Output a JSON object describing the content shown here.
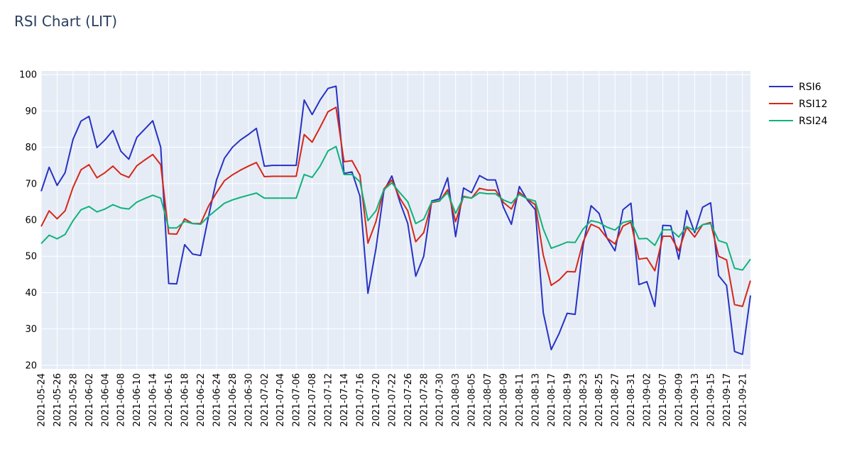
{
  "chart_data": {
    "type": "line",
    "title": "RSI Chart (LIT)",
    "xlabel": "",
    "ylabel": "",
    "ylim": [
      19,
      101
    ],
    "yticks": [
      20,
      30,
      40,
      50,
      60,
      70,
      80,
      90,
      100
    ],
    "grid": true,
    "legend_position": "top-right",
    "background_color": "#e5ecf6",
    "x": [
      "2021-05-24",
      "2021-05-25",
      "2021-05-26",
      "2021-05-27",
      "2021-05-28",
      "2021-06-01",
      "2021-06-02",
      "2021-06-03",
      "2021-06-04",
      "2021-06-07",
      "2021-06-08",
      "2021-06-09",
      "2021-06-10",
      "2021-06-11",
      "2021-06-14",
      "2021-06-15",
      "2021-06-16",
      "2021-06-17",
      "2021-06-18",
      "2021-06-21",
      "2021-06-22",
      "2021-06-23",
      "2021-06-24",
      "2021-06-25",
      "2021-06-28",
      "2021-06-29",
      "2021-06-30",
      "2021-07-01",
      "2021-07-02",
      "2021-07-03",
      "2021-07-04",
      "2021-07-05",
      "2021-07-06",
      "2021-07-07",
      "2021-07-08",
      "2021-07-09",
      "2021-07-12",
      "2021-07-13",
      "2021-07-14",
      "2021-07-15",
      "2021-07-16",
      "2021-07-19",
      "2021-07-20",
      "2021-07-21",
      "2021-07-22",
      "2021-07-23",
      "2021-07-26",
      "2021-07-27",
      "2021-07-28",
      "2021-07-29",
      "2021-07-30",
      "2021-08-02",
      "2021-08-03",
      "2021-08-04",
      "2021-08-05",
      "2021-08-06",
      "2021-08-07",
      "2021-08-08",
      "2021-08-09",
      "2021-08-10",
      "2021-08-11",
      "2021-08-12",
      "2021-08-13",
      "2021-08-16",
      "2021-08-17",
      "2021-08-18",
      "2021-08-19",
      "2021-08-20",
      "2021-08-23",
      "2021-08-24",
      "2021-08-25",
      "2021-08-26",
      "2021-08-27",
      "2021-08-30",
      "2021-08-31",
      "2021-09-01",
      "2021-09-02",
      "2021-09-03",
      "2021-09-07",
      "2021-09-08",
      "2021-09-09",
      "2021-09-10",
      "2021-09-13",
      "2021-09-14",
      "2021-09-15",
      "2021-09-16",
      "2021-09-17",
      "2021-09-20",
      "2021-09-21",
      "2021-09-22"
    ],
    "tick_labels": [
      "2021-05-24",
      "2021-05-26",
      "2021-05-28",
      "2021-06-02",
      "2021-06-04",
      "2021-06-08",
      "2021-06-10",
      "2021-06-14",
      "2021-06-16",
      "2021-06-18",
      "2021-06-22",
      "2021-06-24",
      "2021-06-28",
      "2021-06-30",
      "2021-07-02",
      "2021-07-04",
      "2021-07-06",
      "2021-07-08",
      "2021-07-12",
      "2021-07-14",
      "2021-07-16",
      "2021-07-20",
      "2021-07-22",
      "2021-07-26",
      "2021-07-28",
      "2021-07-30",
      "2021-08-03",
      "2021-08-05",
      "2021-08-07",
      "2021-08-09",
      "2021-08-11",
      "2021-08-13",
      "2021-08-17",
      "2021-08-19",
      "2021-08-23",
      "2021-08-25",
      "2021-08-27",
      "2021-08-31",
      "2021-09-02",
      "2021-09-07",
      "2021-09-09",
      "2021-09-13",
      "2021-09-15",
      "2021-09-17",
      "2021-09-21"
    ],
    "series": [
      {
        "name": "RSI6",
        "color": "#2832c2",
        "values": [
          67.9,
          74.5,
          69.5,
          73.0,
          82.2,
          87.2,
          88.5,
          79.9,
          82.0,
          84.6,
          78.9,
          76.7,
          82.7,
          85.0,
          87.3,
          80.0,
          42.5,
          42.4,
          53.2,
          50.6,
          50.2,
          61.0,
          71.0,
          77.0,
          80.0,
          82.0,
          83.5,
          85.2,
          74.8,
          75.0,
          75.0,
          75.0,
          75.0,
          93.0,
          89.0,
          93.0,
          96.2,
          96.8,
          72.8,
          73.2,
          66.5,
          39.8,
          52.0,
          68.0,
          72.1,
          65.0,
          59.0,
          44.5,
          50.0,
          65.2,
          65.8,
          71.6,
          55.4,
          68.8,
          67.5,
          72.2,
          71.0,
          71.0,
          63.5,
          58.8,
          69.2,
          65.5,
          62.8,
          34.5,
          24.3,
          28.8,
          34.3,
          34.0,
          53.0,
          63.9,
          61.8,
          55.0,
          51.5,
          62.8,
          64.6,
          42.2,
          43.0,
          36.2,
          58.5,
          58.4,
          49.2,
          62.6,
          56.5,
          63.5,
          64.7,
          44.7,
          42.0,
          23.8,
          23.0,
          39.2
        ]
      },
      {
        "name": "RSI12",
        "color": "#d62718",
        "values": [
          58.2,
          62.5,
          60.3,
          62.5,
          69.0,
          73.8,
          75.2,
          71.6,
          73.0,
          74.8,
          72.6,
          71.7,
          74.9,
          76.5,
          78.0,
          75.2,
          56.2,
          56.1,
          60.3,
          59.0,
          59.0,
          63.8,
          67.5,
          70.8,
          72.4,
          73.7,
          74.8,
          75.8,
          71.9,
          72.0,
          72.0,
          72.0,
          72.0,
          83.5,
          81.4,
          85.5,
          89.8,
          91.0,
          76.0,
          76.3,
          72.3,
          53.6,
          59.5,
          68.5,
          71.0,
          66.0,
          62.5,
          54.0,
          56.5,
          64.8,
          65.2,
          68.3,
          59.5,
          66.5,
          66.0,
          68.7,
          68.2,
          68.2,
          64.8,
          63.0,
          67.6,
          65.7,
          64.2,
          50.3,
          42.0,
          43.5,
          45.8,
          45.7,
          54.0,
          58.8,
          57.8,
          55.0,
          53.4,
          58.3,
          59.4,
          49.2,
          49.5,
          46.0,
          55.5,
          55.5,
          51.5,
          58.0,
          55.3,
          58.7,
          59.3,
          50.0,
          49.0,
          36.7,
          36.2,
          43.3
        ]
      },
      {
        "name": "RSI24",
        "color": "#10b27a",
        "values": [
          53.5,
          55.8,
          54.8,
          56.0,
          59.8,
          62.8,
          63.7,
          62.2,
          63.0,
          64.2,
          63.3,
          63.0,
          64.9,
          65.9,
          66.8,
          66.0,
          57.8,
          57.8,
          59.6,
          59.0,
          58.8,
          61.0,
          62.8,
          64.6,
          65.5,
          66.2,
          66.8,
          67.4,
          66.0,
          66.0,
          66.0,
          66.0,
          66.0,
          72.5,
          71.7,
          74.8,
          79.0,
          80.2,
          72.5,
          72.5,
          70.5,
          59.8,
          62.5,
          68.3,
          70.2,
          67.5,
          65.0,
          59.0,
          60.2,
          65.0,
          65.3,
          67.5,
          61.8,
          66.3,
          66.0,
          67.5,
          67.2,
          67.2,
          65.5,
          64.6,
          67.0,
          65.8,
          65.2,
          57.5,
          52.2,
          53.0,
          53.9,
          53.8,
          57.5,
          59.8,
          59.3,
          58.0,
          57.2,
          59.3,
          59.8,
          54.8,
          54.9,
          53.0,
          57.3,
          57.3,
          55.3,
          58.2,
          57.0,
          58.7,
          59.0,
          54.3,
          53.6,
          46.7,
          46.2,
          49.2
        ]
      }
    ]
  }
}
